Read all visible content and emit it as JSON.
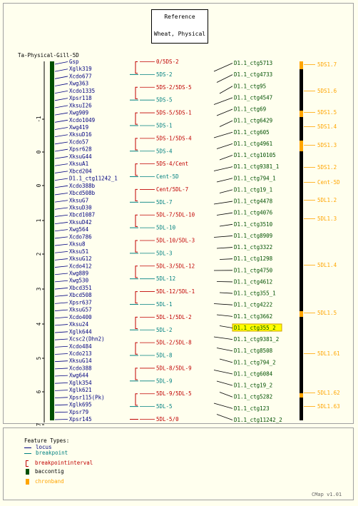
{
  "reference": {
    "line1": "Reference",
    "line2": "Wheat, Physical"
  },
  "map_title": "Ta-Physical-Gill-5D",
  "colors": {
    "locus": "#000080",
    "breakpoint": "#008080",
    "breakpointinterval": "#c00000",
    "baccontig": "#005000",
    "chronband": "#ffa500",
    "correspondence": "#000000"
  },
  "axis_ticks": [
    "-1",
    "0",
    "0",
    "1",
    "2",
    "3",
    "4",
    "5",
    "6",
    "7"
  ],
  "loci": [
    "Gsp",
    "Xglk319",
    "Xcdo677",
    "Xwg363",
    "Xcdo1335",
    "Xpsr118",
    "XksuI26",
    "Xwg909",
    "Xcdo1049",
    "Xwg419",
    "XksuD16",
    "Xcdo57",
    "Xpsr628",
    "XksuG44",
    "XksuA1",
    "Xbcd204",
    "D1.1_ctg11242_1",
    "Xcdo388b",
    "Xbcd508b",
    "XksuG7",
    "XksuD30",
    "Xbcd1087",
    "XksuD42",
    "Xwg564",
    "Xcdo786",
    "Xksu8",
    "Xksu51",
    "XksuG12",
    "Xcdo412",
    "Xwg889",
    "Xwg530",
    "Xbcd351",
    "Xbcd508",
    "Xpsr637",
    "XksuG57",
    "Xcdo400",
    "Xksu24",
    "Xglk644",
    "Xcsc2(Dhn2)",
    "Xcdo484",
    "Xcdo213",
    "XksuG14",
    "Xcdo388",
    "Xwg644",
    "Xglk354",
    "Xglk621",
    "Xpsr115(Pk)",
    "Xglk695",
    "Xpsr79",
    "Xpsr145"
  ],
  "breakpoints": [
    {
      "label": "0/5DS-2",
      "type": "breakpointinterval"
    },
    {
      "label": "5DS-2",
      "type": "breakpoint"
    },
    {
      "label": "5DS-2/5DS-5",
      "type": "breakpointinterval"
    },
    {
      "label": "5DS-5",
      "type": "breakpoint"
    },
    {
      "label": "5DS-5/5DS-1",
      "type": "breakpointinterval"
    },
    {
      "label": "5DS-1",
      "type": "breakpoint"
    },
    {
      "label": "5DS-1/5DS-4",
      "type": "breakpointinterval"
    },
    {
      "label": "5DS-4",
      "type": "breakpoint"
    },
    {
      "label": "5DS-4/Cent",
      "type": "breakpointinterval"
    },
    {
      "label": "Cent-5D",
      "type": "breakpoint"
    },
    {
      "label": "Cent/5DL-7",
      "type": "breakpointinterval"
    },
    {
      "label": "5DL-7",
      "type": "breakpoint"
    },
    {
      "label": "5DL-7/5DL-10",
      "type": "breakpointinterval"
    },
    {
      "label": "5DL-10",
      "type": "breakpoint"
    },
    {
      "label": "5DL-10/5DL-3",
      "type": "breakpointinterval"
    },
    {
      "label": "5DL-3",
      "type": "breakpoint"
    },
    {
      "label": "5DL-3/5DL-12",
      "type": "breakpointinterval"
    },
    {
      "label": "5DL-12",
      "type": "breakpoint"
    },
    {
      "label": "5DL-12/5DL-1",
      "type": "breakpointinterval"
    },
    {
      "label": "5DL-1",
      "type": "breakpoint"
    },
    {
      "label": "5DL-1/5DL-2",
      "type": "breakpointinterval"
    },
    {
      "label": "5DL-2",
      "type": "breakpoint"
    },
    {
      "label": "5DL-2/5DL-8",
      "type": "breakpointinterval"
    },
    {
      "label": "5DL-8",
      "type": "breakpoint"
    },
    {
      "label": "5DL-8/5DL-9",
      "type": "breakpointinterval"
    },
    {
      "label": "5DL-9",
      "type": "breakpoint"
    },
    {
      "label": "5DL-9/5DL-5",
      "type": "breakpointinterval"
    },
    {
      "label": "5DL-5",
      "type": "breakpoint"
    },
    {
      "label": "5DL-5/0",
      "type": "breakpointinterval"
    }
  ],
  "contigs": [
    {
      "label": "D1.1_ctg5713",
      "highlighted": false
    },
    {
      "label": "D1.1_ctg4733",
      "highlighted": false
    },
    {
      "label": "D1.1_ctg95",
      "highlighted": false
    },
    {
      "label": "D1.1_ctg4547",
      "highlighted": false
    },
    {
      "label": "D1.1_ctg69",
      "highlighted": false
    },
    {
      "label": "D1.1_ctg6429",
      "highlighted": false
    },
    {
      "label": "D1.1_ctg605",
      "highlighted": false
    },
    {
      "label": "D1.1_ctg4961",
      "highlighted": false
    },
    {
      "label": "D1.1_ctg10105",
      "highlighted": false
    },
    {
      "label": "D1.1_ctg9381_1",
      "highlighted": false
    },
    {
      "label": "D1.1_ctg794_1",
      "highlighted": false
    },
    {
      "label": "D1.1_ctg19_1",
      "highlighted": false
    },
    {
      "label": "D1.1_ctg4478",
      "highlighted": false
    },
    {
      "label": "D1.1_ctg4076",
      "highlighted": false
    },
    {
      "label": "D1.1_ctg3510",
      "highlighted": false
    },
    {
      "label": "D1.1_ctg8909",
      "highlighted": false
    },
    {
      "label": "D1.1_ctg3322",
      "highlighted": false
    },
    {
      "label": "D1.1_ctg1298",
      "highlighted": false
    },
    {
      "label": "D1.1_ctg4750",
      "highlighted": false
    },
    {
      "label": "D1.1_ctg4612",
      "highlighted": false
    },
    {
      "label": "D1.1_ctg355_1",
      "highlighted": false
    },
    {
      "label": "D1.1_ctg4222",
      "highlighted": false
    },
    {
      "label": "D1.1_ctg3662",
      "highlighted": false
    },
    {
      "label": "D1.1_ctg355_2",
      "highlighted": true
    },
    {
      "label": "D1.1_ctg9381_2",
      "highlighted": false
    },
    {
      "label": "D1.1_ctg8508",
      "highlighted": false
    },
    {
      "label": "D1.1_ctg794_2",
      "highlighted": false
    },
    {
      "label": "D1.1_ctg6084",
      "highlighted": false
    },
    {
      "label": "D1.1_ctg19_2",
      "highlighted": false
    },
    {
      "label": "D1.1_ctg5282",
      "highlighted": false
    },
    {
      "label": "D1.1_ctg123",
      "highlighted": false
    },
    {
      "label": "D1.1_ctg11242_2",
      "highlighted": false
    }
  ],
  "chronbands": [
    "5DS1.7",
    "5DS1.6",
    "5DS1.5",
    "5DS1.4",
    "5DS1.3",
    "5DS1.2",
    "Cent-5D",
    "5DL1.2",
    "5DL1.3",
    "5DL1.4",
    "5DL1.5",
    "5DL1.61",
    "5DL1.62",
    "5DL1.63"
  ],
  "legend": {
    "title": "Feature Types:",
    "items": [
      {
        "label": "locus",
        "type": "locus"
      },
      {
        "label": "breakpoint",
        "type": "breakpoint"
      },
      {
        "label": "breakpointinterval",
        "type": "breakpointinterval"
      },
      {
        "label": "baccontig",
        "type": "baccontig"
      },
      {
        "label": "chronband",
        "type": "chronband"
      }
    ]
  },
  "version": "CMap v1.01"
}
